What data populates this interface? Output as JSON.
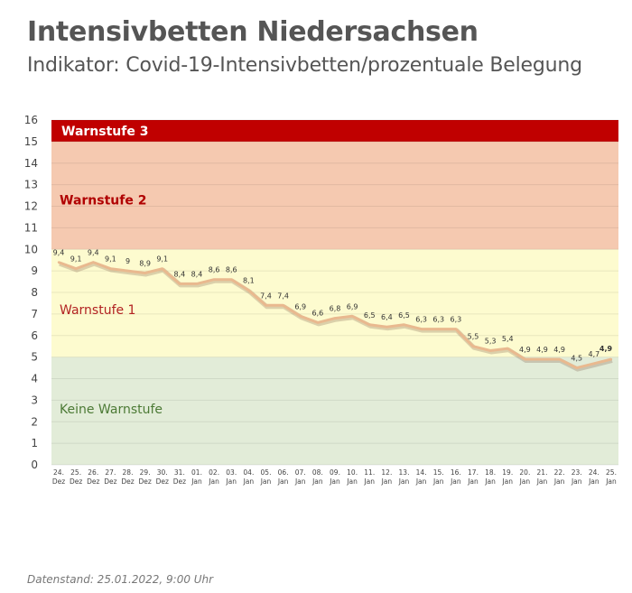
{
  "header": {
    "title": "Intensivbetten Niedersachsen",
    "subtitle": "Indikator: Covid-19-Intensivbetten/prozentuale Belegung"
  },
  "footer": {
    "text": "Datenstand: 25.01.2022, 9:00 Uhr"
  },
  "chart_data": {
    "type": "line",
    "title": "Intensivbetten Niedersachsen",
    "subtitle": "Indikator: Covid-19-Intensivbetten/prozentuale Belegung",
    "xlabel": "",
    "ylabel": "",
    "ylim": [
      0,
      16
    ],
    "yticks": [
      0,
      1,
      2,
      3,
      4,
      5,
      6,
      7,
      8,
      9,
      10,
      11,
      12,
      13,
      14,
      15,
      16
    ],
    "grid": true,
    "categories": [
      [
        "24.",
        "Dez"
      ],
      [
        "25.",
        "Dez"
      ],
      [
        "26.",
        "Dez"
      ],
      [
        "27.",
        "Dez"
      ],
      [
        "28.",
        "Dez"
      ],
      [
        "29.",
        "Dez"
      ],
      [
        "30.",
        "Dez"
      ],
      [
        "31.",
        "Dez"
      ],
      [
        "01.",
        "Jan"
      ],
      [
        "02.",
        "Jan"
      ],
      [
        "03.",
        "Jan"
      ],
      [
        "04.",
        "Jan"
      ],
      [
        "05.",
        "Jan"
      ],
      [
        "06.",
        "Jan"
      ],
      [
        "07.",
        "Jan"
      ],
      [
        "08.",
        "Jan"
      ],
      [
        "09.",
        "Jan"
      ],
      [
        "10.",
        "Jan"
      ],
      [
        "11.",
        "Jan"
      ],
      [
        "12.",
        "Jan"
      ],
      [
        "13.",
        "Jan"
      ],
      [
        "14.",
        "Jan"
      ],
      [
        "15.",
        "Jan"
      ],
      [
        "16.",
        "Jan"
      ],
      [
        "17.",
        "Jan"
      ],
      [
        "18.",
        "Jan"
      ],
      [
        "19.",
        "Jan"
      ],
      [
        "20.",
        "Jan"
      ],
      [
        "21.",
        "Jan"
      ],
      [
        "22.",
        "Jan"
      ],
      [
        "23.",
        "Jan"
      ],
      [
        "24.",
        "Jan"
      ],
      [
        "25.",
        "Jan"
      ]
    ],
    "values": [
      9.4,
      9.1,
      9.4,
      9.1,
      9,
      8.9,
      9.1,
      8.4,
      8.4,
      8.6,
      8.6,
      8.1,
      7.4,
      7.4,
      6.9,
      6.6,
      6.8,
      6.9,
      6.5,
      6.4,
      6.5,
      6.3,
      6.3,
      6.3,
      5.5,
      5.3,
      5.4,
      4.9,
      4.9,
      4.9,
      4.5,
      4.7,
      4.9
    ],
    "labels": [
      "9,4",
      "9,1",
      "9,4",
      "9,1",
      "9",
      "8,9",
      "9,1",
      "8,4",
      "8,4",
      "8,6",
      "8,6",
      "8,1",
      "7,4",
      "7,4",
      "6,9",
      "6,6",
      "6,8",
      "6,9",
      "6,5",
      "6,4",
      "6,5",
      "6,3",
      "6,3",
      "6,3",
      "5,5",
      "5,3",
      "5,4",
      "4,9",
      "4,9",
      "4,9",
      "4,5",
      "4,7",
      "4,9"
    ],
    "zones": [
      {
        "name": "Keine Warnstufe",
        "from": 0,
        "to": 5,
        "color": "#e2ecd8",
        "label_color": "#4c7a35"
      },
      {
        "name": "Warnstufe 1",
        "from": 5,
        "to": 10,
        "color": "#fdfbcf",
        "label_color": "#b22222"
      },
      {
        "name": "Warnstufe 2",
        "from": 10,
        "to": 15,
        "color": "#f5c9b0",
        "label_color": "#b00000"
      },
      {
        "name": "Warnstufe 3",
        "from": 15,
        "to": 16,
        "color": "#c00000",
        "label_color": "#ffffff"
      }
    ],
    "line_color": "#e9b98f",
    "highlight_color": "#5a8a30"
  }
}
